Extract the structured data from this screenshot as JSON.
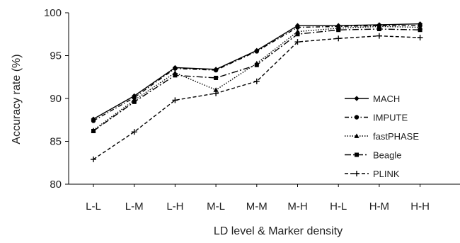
{
  "chart_data": {
    "type": "line",
    "categories": [
      "L-L",
      "L-M",
      "L-H",
      "M-L",
      "M-M",
      "M-H",
      "H-L",
      "H-M",
      "H-H"
    ],
    "xlabel": "LD level & Marker  density",
    "ylabel": "Accuracy rate (%)",
    "ylim": [
      80,
      100
    ],
    "yticks": [
      80,
      85,
      90,
      95,
      100
    ],
    "grid": false,
    "legend_position": "right",
    "series": [
      {
        "name": "MACH",
        "values": [
          87.6,
          90.3,
          93.6,
          93.4,
          95.6,
          98.5,
          98.5,
          98.6,
          98.7
        ],
        "color": "#000000",
        "dash": "",
        "marker": "diamond"
      },
      {
        "name": "IMPUTE",
        "values": [
          87.4,
          90.1,
          93.5,
          93.3,
          95.5,
          98.3,
          98.4,
          98.5,
          98.5
        ],
        "color": "#000000",
        "dash": "6,3,1.5,3",
        "marker": "circle"
      },
      {
        "name": "fastPHASE",
        "values": [
          86.3,
          89.8,
          93.0,
          91.0,
          94.1,
          97.8,
          98.2,
          98.4,
          98.3
        ],
        "color": "#000000",
        "dash": "1.5,2",
        "marker": "triangle"
      },
      {
        "name": "Beagle",
        "values": [
          86.2,
          89.6,
          92.7,
          92.4,
          93.9,
          97.5,
          98.0,
          98.1,
          98.0
        ],
        "color": "#000000",
        "dash": "9,3,2,3",
        "marker": "square"
      },
      {
        "name": "PLINK",
        "values": [
          82.9,
          86.1,
          89.8,
          90.6,
          92.0,
          96.6,
          97.0,
          97.3,
          97.1
        ],
        "color": "#000000",
        "dash": "5,3",
        "marker": "plus"
      }
    ]
  }
}
